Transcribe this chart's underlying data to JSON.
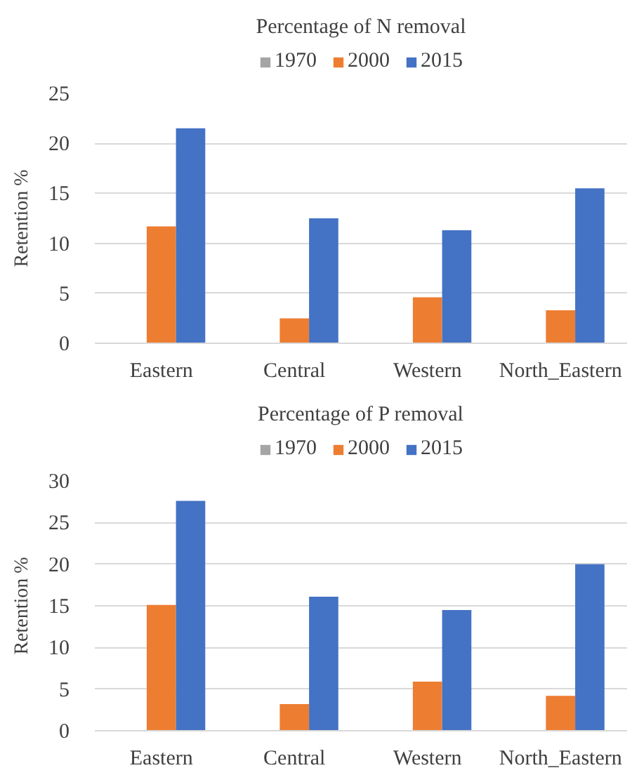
{
  "chart_data": [
    {
      "type": "bar",
      "title": "Percentage of N removal",
      "ylabel": "Retention %",
      "categories": [
        "Eastern",
        "Central",
        "Western",
        "North_Eastern"
      ],
      "series": [
        {
          "name": "1970",
          "color": "#a5a5a5",
          "values": [
            null,
            null,
            null,
            null
          ]
        },
        {
          "name": "2000",
          "color": "#ed7d31",
          "values": [
            11.7,
            2.5,
            4.6,
            3.3
          ]
        },
        {
          "name": "2015",
          "color": "#4472c4",
          "values": [
            21.5,
            12.5,
            11.3,
            15.5
          ]
        }
      ],
      "ylim": [
        0,
        25
      ],
      "yticks": [
        0,
        5,
        10,
        15,
        20,
        25
      ],
      "grid": "y",
      "legend": "top"
    },
    {
      "type": "bar",
      "title": "Percentage of P removal",
      "ylabel": "Retention %",
      "categories": [
        "Eastern",
        "Central",
        "Western",
        "North_Eastern"
      ],
      "series": [
        {
          "name": "1970",
          "color": "#a5a5a5",
          "values": [
            null,
            null,
            null,
            null
          ]
        },
        {
          "name": "2000",
          "color": "#ed7d31",
          "values": [
            15.1,
            3.2,
            5.9,
            4.2
          ]
        },
        {
          "name": "2015",
          "color": "#4472c4",
          "values": [
            27.6,
            16.1,
            14.5,
            20.0
          ]
        }
      ],
      "ylim": [
        0,
        30
      ],
      "yticks": [
        0,
        5,
        10,
        15,
        20,
        25,
        30
      ],
      "grid": "y",
      "legend": "top"
    }
  ]
}
